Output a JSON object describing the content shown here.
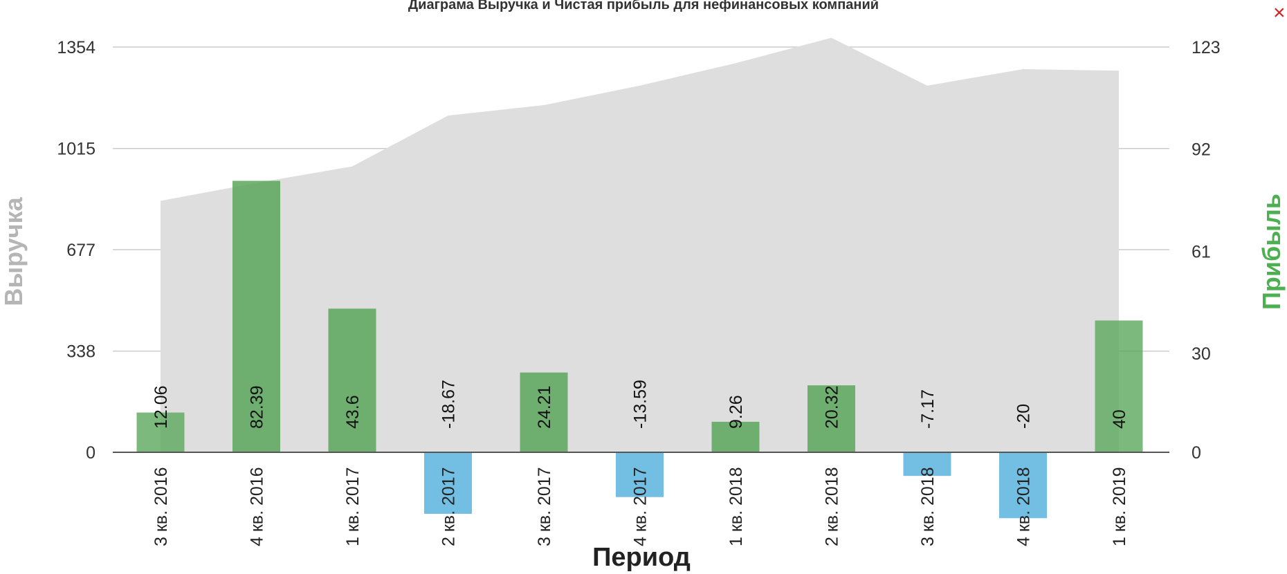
{
  "chart_data": {
    "type": "bar",
    "title": "Диаграма Выручка и Чистая прибыль для нефинансовых компаний",
    "xlabel": "Период",
    "ylabel_left": "Выручка",
    "ylabel_right": "Прибыль",
    "categories": [
      "3 кв. 2016",
      "4 кв. 2016",
      "1 кв. 2017",
      "2 кв. 2017",
      "3 кв. 2017",
      "4 кв. 2017",
      "1 кв. 2018",
      "2 кв. 2018",
      "3 кв. 2018",
      "4 кв. 2018",
      "1 кв. 2019"
    ],
    "left_ticks": [
      "0",
      "338",
      "677",
      "1015",
      "1354"
    ],
    "right_ticks": [
      "0",
      "30",
      "61",
      "92",
      "123"
    ],
    "ylim_left": [
      0,
      1354
    ],
    "ylim_right": [
      0,
      123
    ],
    "grid": true,
    "series": [
      {
        "type": "area",
        "values": [
          840,
          900,
          955,
          1125,
          1160,
          1225,
          1300,
          1385,
          1225,
          1280,
          1275
        ]
      },
      {
        "type": "bar",
        "values": [
          12.06,
          82.39,
          43.6,
          -18.67,
          24.21,
          -13.59,
          9.26,
          20.32,
          -7.17,
          -20,
          40
        ],
        "labels": [
          "12.06",
          "82.39",
          "43.6",
          "-18.67",
          "24.21",
          "-13.59",
          "9.26",
          "20.32",
          "-7.17",
          "-20",
          "40"
        ]
      }
    ],
    "colors": {
      "area": "#dedede",
      "positive": "#5aa75d",
      "negative": "#5bb4de",
      "grid": "#cccccc",
      "zero_line": "#555555",
      "left_label": "#b5b5b5",
      "right_label": "#4caf50",
      "title": "#333333"
    }
  },
  "ui": {
    "close_symbol": "×"
  }
}
